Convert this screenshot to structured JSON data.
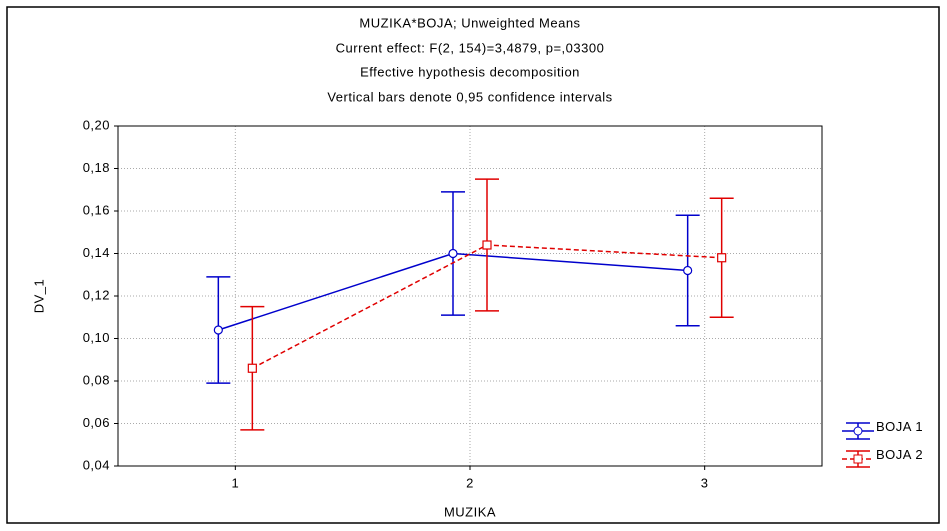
{
  "chart_data": {
    "type": "line",
    "title": "MUZIKA*BOJA; Unweighted Means",
    "subtitles": [
      "Current effect: F(2, 154)=3,4879, p=,03300",
      "Effective hypothesis decomposition",
      "Vertical bars denote 0,95 confidence intervals"
    ],
    "x_label": "MUZIKA",
    "y_label": "DV_1",
    "categories": [
      "1",
      "2",
      "3"
    ],
    "series": [
      {
        "name": "BOJA 1",
        "color": "#0000cc",
        "dash": false,
        "marker": "circle",
        "values": [
          0.104,
          0.14,
          0.132
        ],
        "errors": [
          0.025,
          0.029,
          0.026
        ]
      },
      {
        "name": "BOJA 2",
        "color": "#e00000",
        "dash": true,
        "marker": "square",
        "values": [
          0.086,
          0.144,
          0.138
        ],
        "errors": [
          0.029,
          0.031,
          0.028
        ]
      }
    ],
    "ylim": [
      0.04,
      0.2
    ],
    "yticks": [
      {
        "value": 0.04,
        "label": "0,04"
      },
      {
        "value": 0.06,
        "label": "0,06"
      },
      {
        "value": 0.08,
        "label": "0,08"
      },
      {
        "value": 0.1,
        "label": "0,10"
      },
      {
        "value": 0.12,
        "label": "0,12"
      },
      {
        "value": 0.14,
        "label": "0,14"
      },
      {
        "value": 0.16,
        "label": "0,16"
      },
      {
        "value": 0.18,
        "label": "0,18"
      },
      {
        "value": 0.2,
        "label": "0,20"
      }
    ],
    "grid": true,
    "legend": "lower right"
  }
}
